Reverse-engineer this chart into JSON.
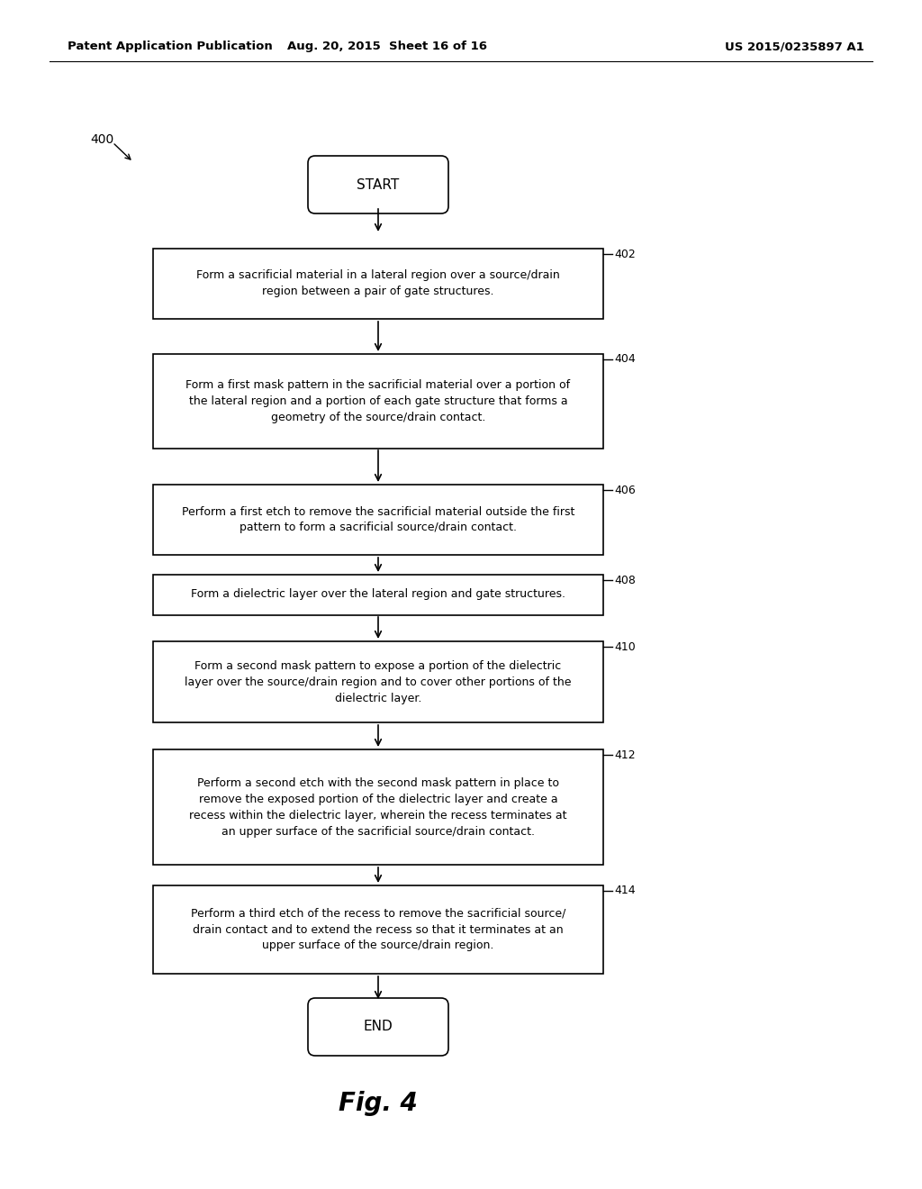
{
  "header_left": "Patent Application Publication",
  "header_mid": "Aug. 20, 2015  Sheet 16 of 16",
  "header_right": "US 2015/0235897 A1",
  "fig_label": "Fig. 4",
  "diagram_label": "400",
  "background_color": "#ffffff",
  "text_color": "#000000",
  "steps": [
    {
      "id": "402",
      "text": "Form a sacrificial material in a lateral region over a source/drain\nregion between a pair of gate structures."
    },
    {
      "id": "404",
      "text": "Form a first mask pattern in the sacrificial material over a portion of\nthe lateral region and a portion of each gate structure that forms a\ngeometry of the source/drain contact."
    },
    {
      "id": "406",
      "text": "Perform a first etch to remove the sacrificial material outside the first\npattern to form a sacrificial source/drain contact."
    },
    {
      "id": "408",
      "text": "Form a dielectric layer over the lateral region and gate structures."
    },
    {
      "id": "410",
      "text": "Form a second mask pattern to expose a portion of the dielectric\nlayer over the source/drain region and to cover other portions of the\ndielectric layer."
    },
    {
      "id": "412",
      "text": "Perform a second etch with the second mask pattern in place to\nremove the exposed portion of the dielectric layer and create a\nrecess within the dielectric layer, wherein the recess terminates at\nan upper surface of the sacrificial source/drain contact."
    },
    {
      "id": "414",
      "text": "Perform a third etch of the recess to remove the sacrificial source/\ndrain contact and to extend the recess so that it terminates at an\nupper surface of the source/drain region."
    }
  ]
}
